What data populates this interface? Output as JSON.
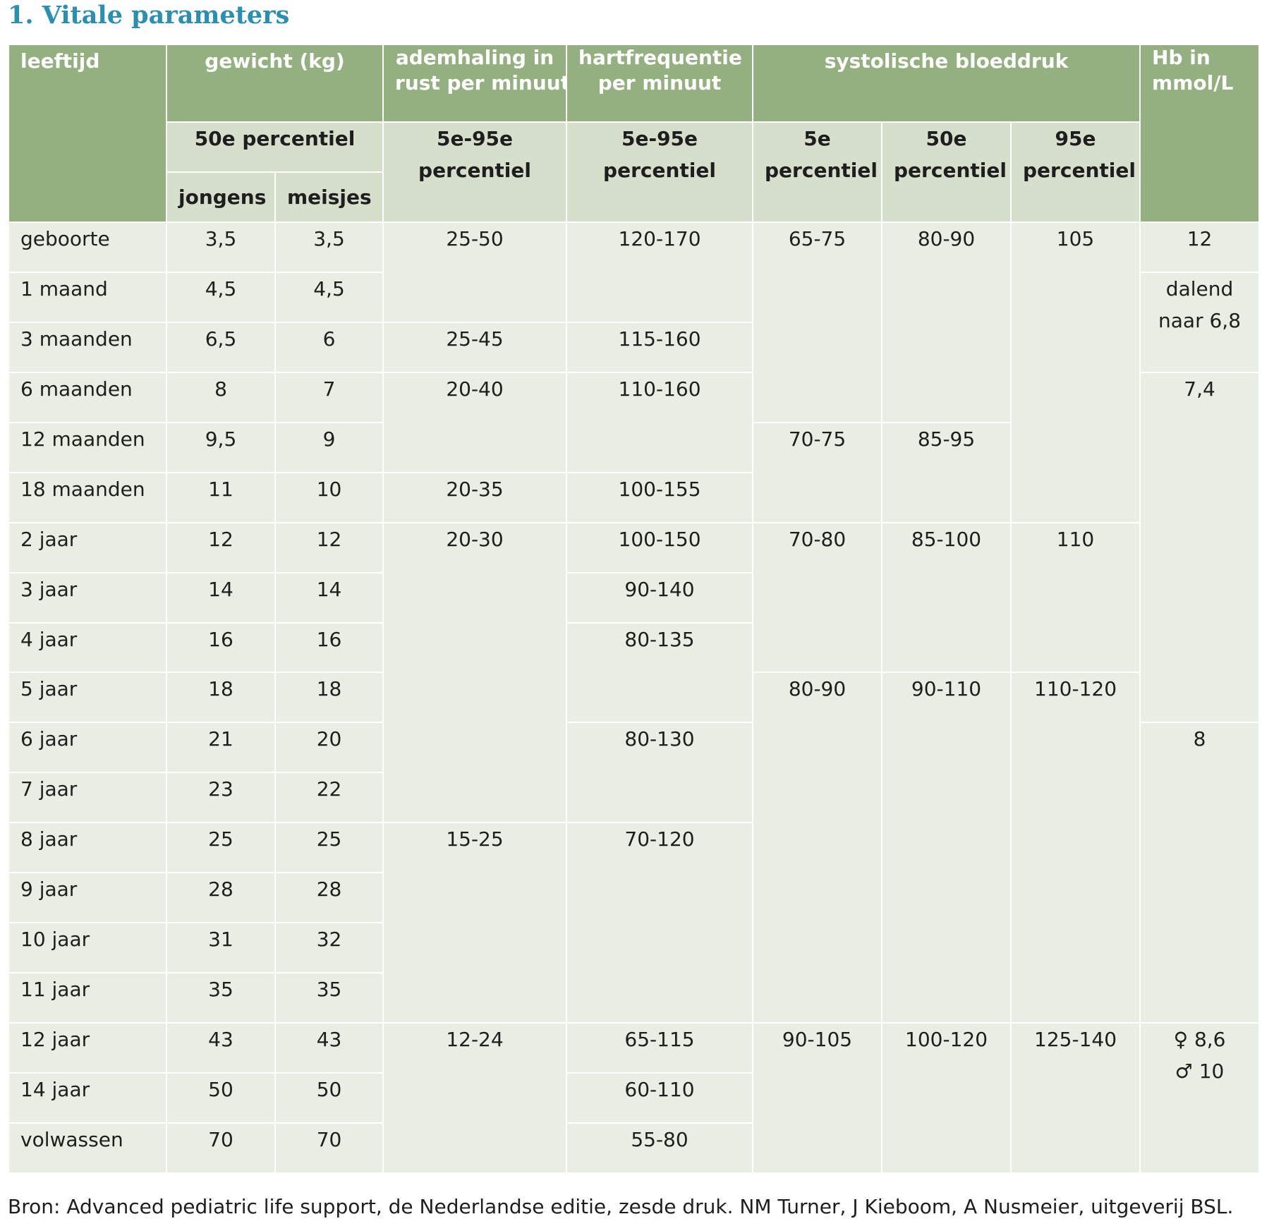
{
  "title": "1. Vitale parameters",
  "headers": {
    "age": "leeftijd",
    "weight": "gewicht (kg)",
    "breathing_line1": "ademhaling in",
    "breathing_line2": "rust per minuut",
    "heart_line1": "hartfrequentie",
    "heart_line2": "per minuut",
    "bp": "systolische bloeddruk",
    "hb_line1": "Hb in",
    "hb_line2": "mmol/L",
    "weight_sub": "50e percentiel",
    "boys": "jongens",
    "girls": "meisjes",
    "range_line1": "5e-95e",
    "percentile": "percentiel",
    "bp_p5": "5e",
    "bp_p50": "50e",
    "bp_p95": "95e"
  },
  "rows": [
    {
      "age": "geboorte",
      "boys": "3,5",
      "girls": "3,5"
    },
    {
      "age": "1 maand",
      "boys": "4,5",
      "girls": "4,5"
    },
    {
      "age": "3 maanden",
      "boys": "6,5",
      "girls": "6"
    },
    {
      "age": "6 maanden",
      "boys": "8",
      "girls": "7"
    },
    {
      "age": "12 maanden",
      "boys": "9,5",
      "girls": "9"
    },
    {
      "age": "18 maanden",
      "boys": "11",
      "girls": "10"
    },
    {
      "age": "2 jaar",
      "boys": "12",
      "girls": "12"
    },
    {
      "age": "3 jaar",
      "boys": "14",
      "girls": "14"
    },
    {
      "age": "4 jaar",
      "boys": "16",
      "girls": "16"
    },
    {
      "age": "5 jaar",
      "boys": "18",
      "girls": "18"
    },
    {
      "age": "6 jaar",
      "boys": "21",
      "girls": "20"
    },
    {
      "age": "7 jaar",
      "boys": "23",
      "girls": "22"
    },
    {
      "age": "8 jaar",
      "boys": "25",
      "girls": "25"
    },
    {
      "age": "9 jaar",
      "boys": "28",
      "girls": "28"
    },
    {
      "age": "10 jaar",
      "boys": "31",
      "girls": "32"
    },
    {
      "age": "11 jaar",
      "boys": "35",
      "girls": "35"
    },
    {
      "age": "12 jaar",
      "boys": "43",
      "girls": "43"
    },
    {
      "age": "14 jaar",
      "boys": "50",
      "girls": "50"
    },
    {
      "age": "volwassen",
      "boys": "70",
      "girls": "70"
    }
  ],
  "breathing": [
    "25-50",
    "25-45",
    "20-40",
    "20-35",
    "20-30",
    "15-25",
    "12-24"
  ],
  "heart_rate": [
    "120-170",
    "115-160",
    "110-160",
    "100-155",
    "100-150",
    "90-140",
    "80-135",
    "80-130",
    "70-120",
    "65-115",
    "60-110",
    "55-80"
  ],
  "bp_p5": [
    "65-75",
    "70-75",
    "70-80",
    "80-90",
    "90-105"
  ],
  "bp_p50": [
    "80-90",
    "85-95",
    "85-100",
    "90-110",
    "100-120"
  ],
  "bp_p95": [
    "105",
    "110",
    "110-120",
    "125-140"
  ],
  "hb": {
    "v0": "12",
    "v1_line1": "dalend",
    "v1_line2": "naar 6,8",
    "v2": "7,4",
    "v3": "8",
    "v4_line1": "♀ 8,6",
    "v4_line2": "♂ 10"
  },
  "source": "Bron: Advanced pediatric life support, de Nederlandse editie, zesde druk. NM Turner, J Kieboom, A Nusmeier, uitgeverij BSL."
}
